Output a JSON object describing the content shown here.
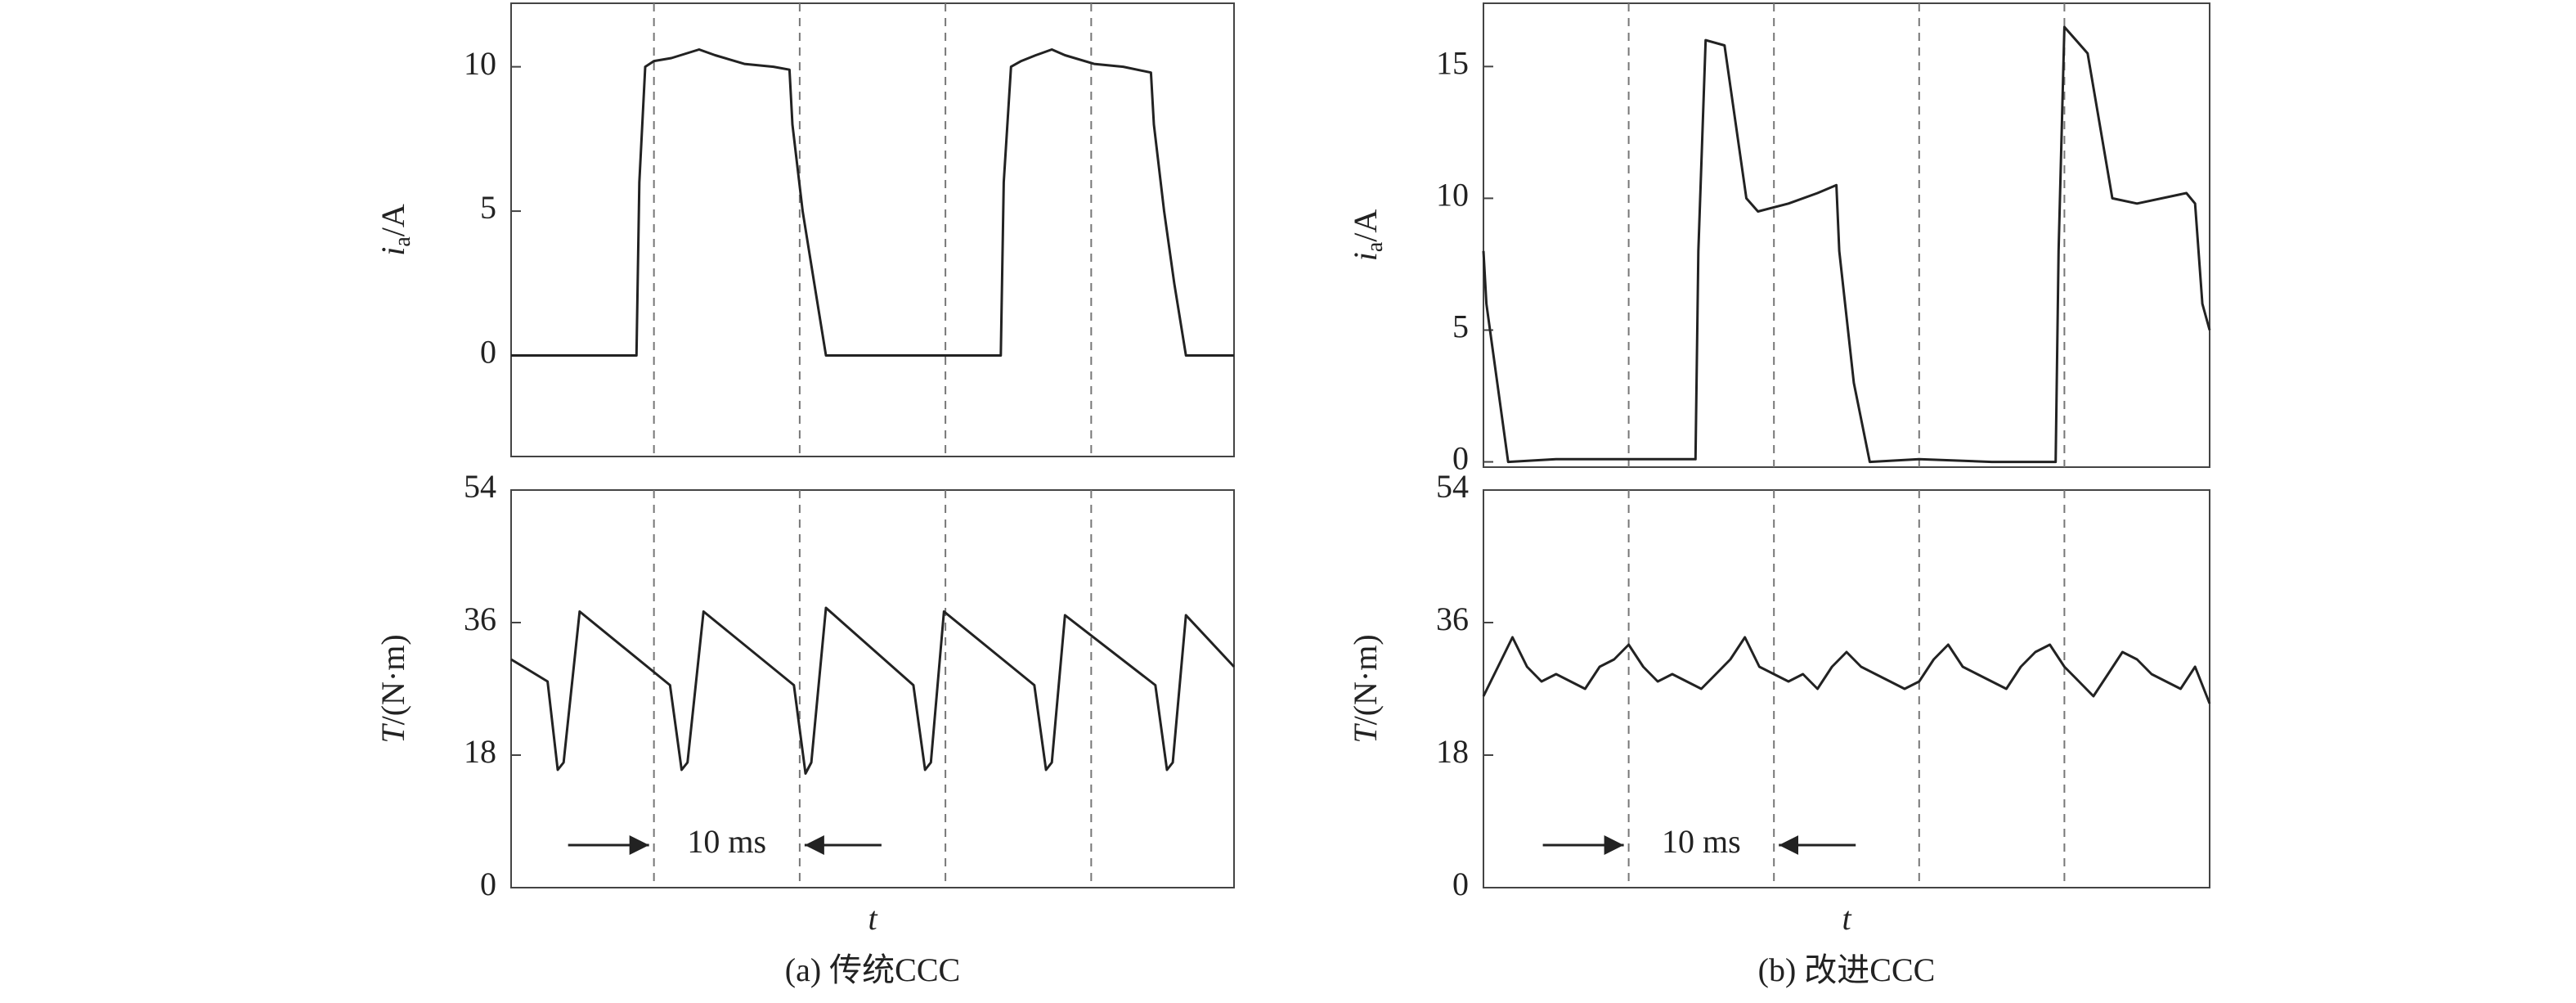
{
  "chart_data": [
    {
      "type": "line",
      "ylabel": {
        "var": "i",
        "sub": "a",
        "unit": "/A"
      },
      "xlim": [
        0,
        49.6
      ],
      "ylim": [
        -3.5,
        12.2
      ],
      "yticks": [
        0,
        5,
        10
      ],
      "vlines": [
        9.8,
        19.8,
        29.8,
        39.8
      ],
      "x": [
        0,
        4,
        8.6,
        8.8,
        9.2,
        9.8,
        11,
        12.9,
        14,
        16,
        18,
        19.1,
        19.3,
        20,
        20.8,
        21.6,
        25,
        30,
        33.6,
        33.8,
        34.3,
        35,
        36,
        37.1,
        38,
        40,
        42,
        43.9,
        44.1,
        44.8,
        45.5,
        46.3,
        48,
        49.6
      ],
      "values": [
        0,
        0,
        0,
        6,
        10,
        10.2,
        10.3,
        10.6,
        10.4,
        10.1,
        10,
        9.9,
        8,
        5,
        2.5,
        0,
        0,
        0,
        0,
        6,
        10,
        10.2,
        10.4,
        10.6,
        10.4,
        10.1,
        10,
        9.8,
        8,
        5,
        2.5,
        0,
        0,
        0
      ],
      "color": "#222222"
    },
    {
      "type": "line",
      "ylabel": {
        "var": "T",
        "unit": "/(N·m)"
      },
      "xlabel": "t",
      "caption": "(a) 传统CCC",
      "annotation": "10 ms",
      "xlim": [
        0,
        49.6
      ],
      "ylim": [
        0,
        54
      ],
      "yticks": [
        0,
        18,
        36,
        54
      ],
      "vlines": [
        9.8,
        19.8,
        29.8,
        39.8
      ],
      "x": [
        0,
        2.5,
        3.2,
        3.6,
        4.7,
        10.9,
        11.7,
        12.1,
        13.2,
        19.4,
        20.2,
        20.6,
        21.6,
        27.6,
        28.4,
        28.8,
        29.7,
        35.9,
        36.7,
        37.1,
        38.0,
        44.2,
        45.0,
        45.4,
        46.3,
        49.6
      ],
      "values": [
        31,
        28,
        16,
        17,
        37.5,
        27.5,
        16,
        17,
        37.5,
        27.5,
        15.5,
        17,
        38,
        27.5,
        16,
        17,
        37.5,
        27.5,
        16,
        17,
        37,
        27.5,
        16,
        17,
        37,
        30
      ],
      "color": "#222222"
    },
    {
      "type": "line",
      "ylabel": {
        "var": "i",
        "sub": "a",
        "unit": "/A"
      },
      "xlim": [
        0,
        50
      ],
      "ylim": [
        -0.2,
        17.4
      ],
      "yticks": [
        0,
        5,
        10,
        15
      ],
      "vlines": [
        10,
        20,
        30,
        40
      ],
      "x": [
        0,
        0.2,
        1.7,
        5,
        10,
        14.6,
        14.8,
        15.3,
        16.6,
        18.1,
        18.9,
        21,
        23,
        24.3,
        24.5,
        25.5,
        26.6,
        30,
        35,
        39.4,
        39.6,
        40,
        41.6,
        43.3,
        45,
        48.4,
        49,
        49.5,
        50
      ],
      "values": [
        8,
        6,
        0,
        0.1,
        0.1,
        0.1,
        8,
        16,
        15.8,
        10,
        9.5,
        9.8,
        10.2,
        10.5,
        8,
        3,
        0,
        0.1,
        0,
        0,
        8,
        16.5,
        15.5,
        10,
        9.8,
        10.2,
        9.8,
        6,
        5
      ],
      "color": "#222222"
    },
    {
      "type": "line",
      "ylabel": {
        "var": "T",
        "unit": "/(N·m)"
      },
      "xlabel": "t",
      "caption": "(b) 改进CCC",
      "annotation": "10 ms",
      "xlim": [
        0,
        50
      ],
      "ylim": [
        0,
        54
      ],
      "yticks": [
        0,
        18,
        36,
        54
      ],
      "vlines": [
        10,
        20,
        30,
        40
      ],
      "x": [
        0,
        1,
        2,
        3,
        4,
        5,
        6,
        7,
        8,
        9,
        10,
        11,
        12,
        13,
        14,
        15,
        16,
        17,
        18,
        19,
        20,
        21,
        22,
        23,
        24,
        25,
        26,
        27,
        28,
        29,
        30,
        31,
        32,
        33,
        34,
        35,
        36,
        37,
        38,
        39,
        40,
        41,
        42,
        43,
        44,
        45,
        46,
        47,
        48,
        49,
        50
      ],
      "values": [
        26,
        30,
        34,
        30,
        28,
        29,
        28,
        27,
        30,
        31,
        33,
        30,
        28,
        29,
        28,
        27,
        29,
        31,
        34,
        30,
        29,
        28,
        29,
        27,
        30,
        32,
        30,
        29,
        28,
        27,
        28,
        31,
        33,
        30,
        29,
        28,
        27,
        30,
        32,
        33,
        30,
        28,
        26,
        29,
        32,
        31,
        29,
        28,
        27,
        30,
        25
      ],
      "color": "#222222"
    }
  ]
}
